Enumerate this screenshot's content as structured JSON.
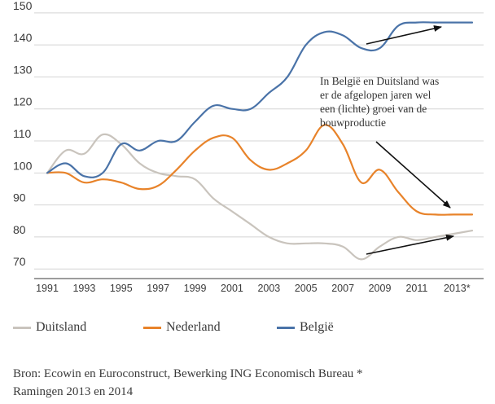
{
  "chart_data": {
    "type": "line",
    "title": "",
    "xlabel": "",
    "ylabel": "",
    "x": [
      1991,
      1992,
      1993,
      1994,
      1995,
      1996,
      1997,
      1998,
      1999,
      2000,
      2001,
      2002,
      2003,
      2004,
      2005,
      2006,
      2007,
      2008,
      2009,
      2010,
      2011,
      2012,
      2013,
      2014
    ],
    "x_tick_labels": [
      "1991",
      "1993",
      "1995",
      "1997",
      "1999",
      "2001",
      "2003",
      "2005",
      "2007",
      "2009",
      "2011",
      "2013*"
    ],
    "y_ticks": [
      70,
      80,
      90,
      100,
      110,
      120,
      130,
      140,
      150
    ],
    "ylim": [
      67,
      152
    ],
    "grid": true,
    "legend_position": "bottom",
    "series": [
      {
        "name": "Duitsland",
        "color": "#c9c4bd",
        "values": [
          100,
          107,
          106,
          112,
          109,
          103,
          100,
          99,
          98,
          92,
          88,
          84,
          80,
          78,
          78,
          78,
          77,
          73,
          77,
          80,
          79,
          80,
          81,
          82
        ]
      },
      {
        "name": "Nederland",
        "color": "#e8832a",
        "values": [
          100,
          100,
          97,
          98,
          97,
          95,
          96,
          101,
          107,
          111,
          111,
          104,
          101,
          103,
          107,
          115,
          109,
          97,
          101,
          94,
          88,
          87,
          87,
          87
        ]
      },
      {
        "name": "België",
        "color": "#4a73a8",
        "values": [
          100,
          103,
          99,
          100,
          109,
          107,
          110,
          110,
          116,
          121,
          120,
          120,
          125,
          130,
          140,
          144,
          143,
          139,
          139,
          146,
          147,
          147,
          147,
          147
        ]
      }
    ],
    "annotation": {
      "lines": [
        "In België en Duitsland was",
        "er de afgelopen jaren wel",
        "een (lichte) groei van de",
        "bouwproductie"
      ]
    }
  },
  "legend": [
    {
      "label": "Duitsland",
      "color": "#c9c4bd"
    },
    {
      "label": "Nederland",
      "color": "#e8832a"
    },
    {
      "label": "België",
      "color": "#4a73a8"
    }
  ],
  "source": {
    "line1": "Bron: Ecowin en Euroconstruct, Bewerking ING Economisch Bureau *",
    "line2": "Ramingen 2013 en 2014"
  }
}
